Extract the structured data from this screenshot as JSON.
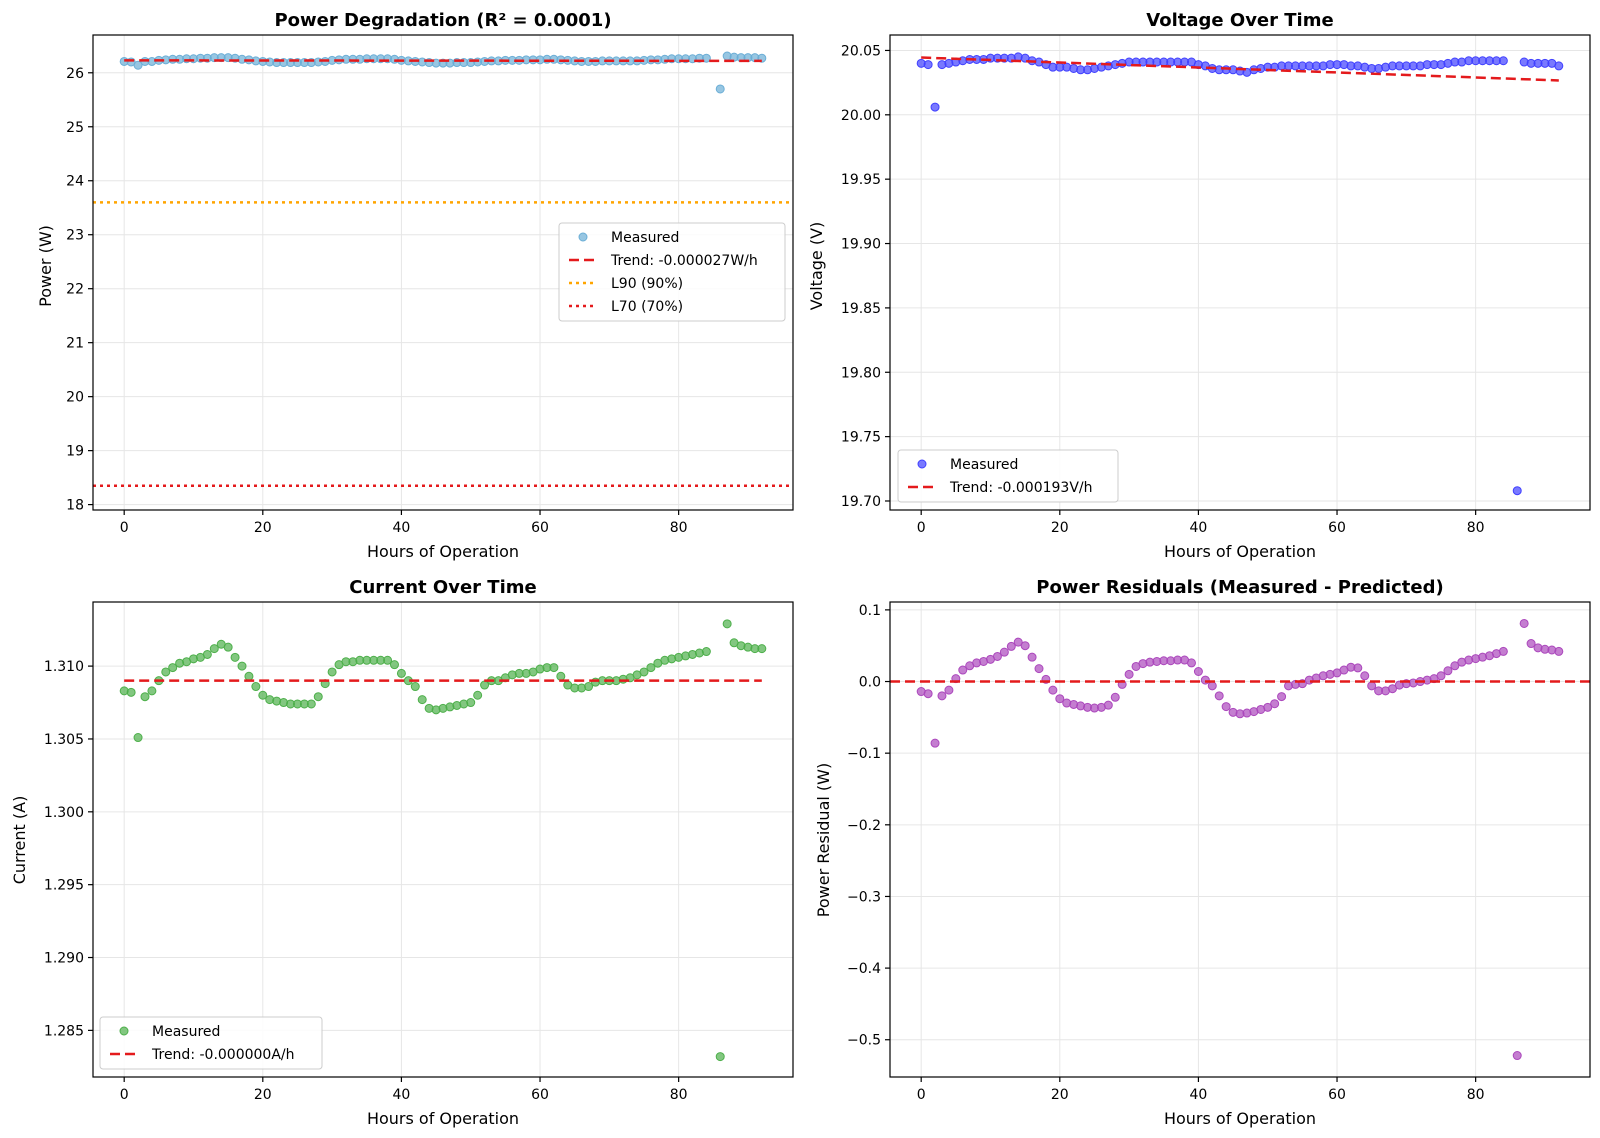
{
  "chart_data": [
    {
      "id": "power",
      "type": "scatter",
      "title": "Power Degradation (R² = 0.0001)",
      "xlabel": "Hours of Operation",
      "ylabel": "Power (W)",
      "xlim": [
        -4.5,
        96.5
      ],
      "ylim": [
        17.9,
        26.7
      ],
      "xticks": [
        0,
        20,
        40,
        60,
        80
      ],
      "yticks": [
        18,
        19,
        20,
        21,
        22,
        23,
        24,
        25,
        26
      ],
      "ytick_labels": [
        "18",
        "19",
        "20",
        "21",
        "22",
        "23",
        "24",
        "25",
        "26"
      ],
      "grid": true,
      "legend_position": "center-right",
      "legend": [
        "Measured",
        "Trend: -0.000027W/h",
        "L90 (90%)",
        "L70 (70%)"
      ],
      "scatter": {
        "name": "Measured",
        "color": "#6baed6",
        "x": [
          0,
          1,
          2,
          3,
          4,
          5,
          6,
          7,
          8,
          9,
          10,
          11,
          12,
          13,
          14,
          15,
          16,
          17,
          18,
          19,
          20,
          21,
          22,
          23,
          24,
          25,
          26,
          27,
          28,
          29,
          30,
          31,
          32,
          33,
          34,
          35,
          36,
          37,
          38,
          39,
          40,
          41,
          42,
          43,
          44,
          45,
          46,
          47,
          48,
          49,
          50,
          51,
          52,
          53,
          54,
          55,
          56,
          57,
          58,
          59,
          60,
          61,
          62,
          63,
          64,
          65,
          66,
          67,
          68,
          69,
          70,
          71,
          72,
          73,
          74,
          75,
          76,
          77,
          78,
          79,
          80,
          81,
          82,
          83,
          84,
          86,
          87,
          88,
          89,
          90,
          91,
          92
        ],
        "y": [
          26.21,
          26.2,
          26.14,
          26.21,
          26.21,
          26.23,
          26.24,
          26.25,
          26.25,
          26.26,
          26.26,
          26.27,
          26.27,
          26.28,
          26.28,
          26.28,
          26.27,
          26.25,
          26.24,
          26.22,
          26.21,
          26.2,
          26.19,
          26.19,
          26.19,
          26.19,
          26.19,
          26.19,
          26.2,
          26.21,
          26.23,
          26.24,
          26.25,
          26.25,
          26.25,
          26.26,
          26.26,
          26.26,
          26.26,
          26.25,
          26.23,
          26.22,
          26.21,
          26.2,
          26.19,
          26.18,
          26.18,
          26.18,
          26.19,
          26.19,
          26.19,
          26.2,
          26.21,
          26.22,
          26.22,
          26.23,
          26.23,
          26.23,
          26.24,
          26.24,
          26.24,
          26.25,
          26.25,
          26.24,
          26.23,
          26.22,
          26.21,
          26.21,
          26.21,
          26.22,
          26.22,
          26.22,
          26.22,
          26.22,
          26.22,
          26.23,
          26.24,
          26.24,
          26.25,
          26.26,
          26.26,
          26.26,
          26.26,
          26.27,
          26.27,
          25.7,
          26.31,
          26.29,
          26.28,
          26.28,
          26.28,
          26.27
        ]
      },
      "lines": [
        {
          "name": "Trend: -0.000027W/h",
          "color": "#e41a1c",
          "style": "dashed",
          "x": [
            0,
            92
          ],
          "y": [
            26.23,
            26.22
          ]
        },
        {
          "name": "L90 (90%)",
          "color": "#ffa500",
          "style": "dotted",
          "x": [
            -4.5,
            96.5
          ],
          "y": [
            23.6,
            23.6
          ]
        },
        {
          "name": "L70 (70%)",
          "color": "#e41a1c",
          "style": "dotted",
          "x": [
            -4.5,
            96.5
          ],
          "y": [
            18.35,
            18.35
          ]
        }
      ]
    },
    {
      "id": "voltage",
      "type": "scatter",
      "title": "Voltage Over Time",
      "xlabel": "Hours of Operation",
      "ylabel": "Voltage (V)",
      "xlim": [
        -4.5,
        96.5
      ],
      "ylim": [
        19.693,
        20.062
      ],
      "xticks": [
        0,
        20,
        40,
        60,
        80
      ],
      "yticks": [
        19.7,
        19.75,
        19.8,
        19.85,
        19.9,
        19.95,
        20.0,
        20.05
      ],
      "ytick_labels": [
        "19.70",
        "19.75",
        "19.80",
        "19.85",
        "19.90",
        "19.95",
        "20.00",
        "20.05"
      ],
      "grid": true,
      "legend_position": "lower-left",
      "legend": [
        "Measured",
        "Trend: -0.000193V/h"
      ],
      "scatter": {
        "name": "Measured",
        "color": "#4040ff",
        "x": [
          0,
          1,
          2,
          3,
          4,
          5,
          6,
          7,
          8,
          9,
          10,
          11,
          12,
          13,
          14,
          15,
          16,
          17,
          18,
          19,
          20,
          21,
          22,
          23,
          24,
          25,
          26,
          27,
          28,
          29,
          30,
          31,
          32,
          33,
          34,
          35,
          36,
          37,
          38,
          39,
          40,
          41,
          42,
          43,
          44,
          45,
          46,
          47,
          48,
          49,
          50,
          51,
          52,
          53,
          54,
          55,
          56,
          57,
          58,
          59,
          60,
          61,
          62,
          63,
          64,
          65,
          66,
          67,
          68,
          69,
          70,
          71,
          72,
          73,
          74,
          75,
          76,
          77,
          78,
          79,
          80,
          81,
          82,
          83,
          84,
          86,
          87,
          88,
          89,
          90,
          91,
          92
        ],
        "y": [
          20.04,
          20.039,
          20.006,
          20.039,
          20.04,
          20.041,
          20.042,
          20.043,
          20.043,
          20.043,
          20.044,
          20.044,
          20.044,
          20.044,
          20.045,
          20.044,
          20.042,
          20.041,
          20.039,
          20.037,
          20.037,
          20.037,
          20.036,
          20.035,
          20.035,
          20.036,
          20.037,
          20.038,
          20.039,
          20.04,
          20.041,
          20.041,
          20.041,
          20.041,
          20.041,
          20.041,
          20.041,
          20.041,
          20.041,
          20.041,
          20.039,
          20.038,
          20.036,
          20.035,
          20.035,
          20.035,
          20.034,
          20.033,
          20.035,
          20.036,
          20.037,
          20.037,
          20.038,
          20.038,
          20.038,
          20.038,
          20.038,
          20.038,
          20.038,
          20.039,
          20.039,
          20.039,
          20.038,
          20.038,
          20.037,
          20.036,
          20.036,
          20.037,
          20.038,
          20.038,
          20.038,
          20.038,
          20.038,
          20.039,
          20.039,
          20.039,
          20.04,
          20.041,
          20.041,
          20.042,
          20.042,
          20.042,
          20.042,
          20.042,
          20.042,
          19.708,
          20.041,
          20.04,
          20.04,
          20.04,
          20.04,
          20.038
        ]
      },
      "lines": [
        {
          "name": "Trend: -0.000193V/h",
          "color": "#e41a1c",
          "style": "dashed",
          "x": [
            0,
            92
          ],
          "y": [
            20.0445,
            20.0267
          ]
        }
      ]
    },
    {
      "id": "current",
      "type": "scatter",
      "title": "Current Over Time",
      "xlabel": "Hours of Operation",
      "ylabel": "Current (A)",
      "xlim": [
        -4.5,
        96.5
      ],
      "ylim": [
        1.2818,
        1.3144
      ],
      "xticks": [
        0,
        20,
        40,
        60,
        80
      ],
      "yticks": [
        1.285,
        1.29,
        1.295,
        1.3,
        1.305,
        1.31
      ],
      "ytick_labels": [
        "1.285",
        "1.290",
        "1.295",
        "1.300",
        "1.305",
        "1.310"
      ],
      "grid": true,
      "legend_position": "lower-left",
      "legend": [
        "Measured",
        "Trend: -0.000000A/h"
      ],
      "scatter": {
        "name": "Measured",
        "color": "#4daf4a",
        "x": [
          0,
          1,
          2,
          3,
          4,
          5,
          6,
          7,
          8,
          9,
          10,
          11,
          12,
          13,
          14,
          15,
          16,
          17,
          18,
          19,
          20,
          21,
          22,
          23,
          24,
          25,
          26,
          27,
          28,
          29,
          30,
          31,
          32,
          33,
          34,
          35,
          36,
          37,
          38,
          39,
          40,
          41,
          42,
          43,
          44,
          45,
          46,
          47,
          48,
          49,
          50,
          51,
          52,
          53,
          54,
          55,
          56,
          57,
          58,
          59,
          60,
          61,
          62,
          63,
          64,
          65,
          66,
          67,
          68,
          69,
          70,
          71,
          72,
          73,
          74,
          75,
          76,
          77,
          78,
          79,
          80,
          81,
          82,
          83,
          84,
          86,
          87,
          88,
          89,
          90,
          91,
          92
        ],
        "y": [
          1.3083,
          1.3082,
          1.3051,
          1.3079,
          1.3083,
          1.309,
          1.3096,
          1.3099,
          1.3102,
          1.3103,
          1.3105,
          1.3106,
          1.3108,
          1.3112,
          1.3115,
          1.3113,
          1.3106,
          1.31,
          1.3093,
          1.3086,
          1.308,
          1.3077,
          1.3076,
          1.3075,
          1.3074,
          1.3074,
          1.3074,
          1.3074,
          1.3079,
          1.3088,
          1.3096,
          1.3101,
          1.3103,
          1.3103,
          1.3104,
          1.3104,
          1.3104,
          1.3104,
          1.3104,
          1.3101,
          1.3095,
          1.309,
          1.3086,
          1.3077,
          1.3071,
          1.307,
          1.3071,
          1.3072,
          1.3073,
          1.3074,
          1.3075,
          1.308,
          1.3087,
          1.309,
          1.309,
          1.3092,
          1.3094,
          1.3095,
          1.3095,
          1.3096,
          1.3098,
          1.3099,
          1.3099,
          1.3093,
          1.3087,
          1.3085,
          1.3085,
          1.3086,
          1.3089,
          1.309,
          1.309,
          1.309,
          1.3091,
          1.3092,
          1.3094,
          1.3096,
          1.3099,
          1.3102,
          1.3104,
          1.3105,
          1.3106,
          1.3107,
          1.3108,
          1.3109,
          1.311,
          1.2832,
          1.3129,
          1.3116,
          1.3114,
          1.3113,
          1.3112,
          1.3112
        ]
      },
      "lines": [
        {
          "name": "Trend: -0.000000A/h",
          "color": "#e41a1c",
          "style": "dashed",
          "x": [
            0,
            92
          ],
          "y": [
            1.309,
            1.309
          ]
        }
      ]
    },
    {
      "id": "residuals",
      "type": "scatter",
      "title": "Power Residuals (Measured - Predicted)",
      "xlabel": "Hours of Operation",
      "ylabel": "Power Residual (W)",
      "xlim": [
        -4.5,
        96.5
      ],
      "ylim": [
        -0.552,
        0.111
      ],
      "xticks": [
        0,
        20,
        40,
        60,
        80
      ],
      "yticks": [
        -0.5,
        -0.4,
        -0.3,
        -0.2,
        -0.1,
        0.0,
        0.1
      ],
      "ytick_labels": [
        "−0.5",
        "−0.4",
        "−0.3",
        "−0.2",
        "−0.1",
        "0.0",
        "0.1"
      ],
      "grid": true,
      "legend_position": "none",
      "legend": [],
      "scatter": {
        "name": "Residuals",
        "color": "#ab47bc",
        "x": [
          0,
          1,
          2,
          3,
          4,
          5,
          6,
          7,
          8,
          9,
          10,
          11,
          12,
          13,
          14,
          15,
          16,
          17,
          18,
          19,
          20,
          21,
          22,
          23,
          24,
          25,
          26,
          27,
          28,
          29,
          30,
          31,
          32,
          33,
          34,
          35,
          36,
          37,
          38,
          39,
          40,
          41,
          42,
          43,
          44,
          45,
          46,
          47,
          48,
          49,
          50,
          51,
          52,
          53,
          54,
          55,
          56,
          57,
          58,
          59,
          60,
          61,
          62,
          63,
          64,
          65,
          66,
          67,
          68,
          69,
          70,
          71,
          72,
          73,
          74,
          75,
          76,
          77,
          78,
          79,
          80,
          81,
          82,
          83,
          84,
          86,
          87,
          88,
          89,
          90,
          91,
          92
        ],
        "y": [
          -0.014,
          -0.017,
          -0.086,
          -0.02,
          -0.012,
          0.004,
          0.016,
          0.022,
          0.026,
          0.028,
          0.031,
          0.035,
          0.041,
          0.049,
          0.055,
          0.05,
          0.034,
          0.018,
          0.003,
          -0.012,
          -0.024,
          -0.03,
          -0.032,
          -0.034,
          -0.036,
          -0.037,
          -0.036,
          -0.033,
          -0.022,
          -0.004,
          0.01,
          0.021,
          0.025,
          0.027,
          0.028,
          0.029,
          0.029,
          0.03,
          0.03,
          0.026,
          0.014,
          0.002,
          -0.006,
          -0.02,
          -0.035,
          -0.043,
          -0.045,
          -0.044,
          -0.042,
          -0.039,
          -0.036,
          -0.031,
          -0.021,
          -0.006,
          -0.004,
          -0.003,
          0.002,
          0.005,
          0.008,
          0.01,
          0.012,
          0.016,
          0.02,
          0.019,
          0.008,
          -0.006,
          -0.013,
          -0.013,
          -0.01,
          -0.005,
          -0.003,
          -0.002,
          0.0,
          0.002,
          0.004,
          0.008,
          0.015,
          0.022,
          0.027,
          0.03,
          0.032,
          0.034,
          0.036,
          0.039,
          0.042,
          -0.522,
          0.081,
          0.053,
          0.047,
          0.045,
          0.044,
          0.042
        ]
      },
      "lines": [
        {
          "name": "zero",
          "color": "#e41a1c",
          "style": "dashed",
          "x": [
            -4.5,
            96.5
          ],
          "y": [
            0,
            0
          ]
        }
      ]
    }
  ]
}
